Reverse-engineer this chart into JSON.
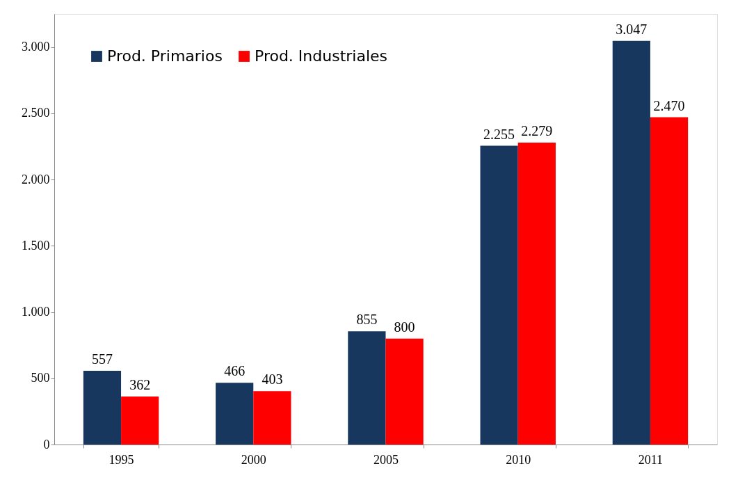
{
  "chart_data": {
    "type": "bar",
    "categories": [
      "1995",
      "2000",
      "2005",
      "2010",
      "2011"
    ],
    "series": [
      {
        "name": "Prod. Primarios",
        "color": "#17375e",
        "values": [
          557,
          466,
          855,
          2255,
          3047
        ],
        "value_labels": [
          "557",
          "466",
          "855",
          "2.255",
          "3.047"
        ]
      },
      {
        "name": "Prod. Industriales",
        "color": "#ff0000",
        "values": [
          362,
          403,
          800,
          2279,
          2470
        ],
        "value_labels": [
          "362",
          "403",
          "800",
          "2.279",
          "2.470"
        ]
      }
    ],
    "ylim": [
      0,
      3250
    ],
    "yticks": [
      0,
      500,
      {
        "value": 1000,
        "label": "1.000"
      },
      {
        "value": 1500,
        "label": "1.500"
      },
      {
        "value": 2000,
        "label": "2.000"
      },
      {
        "value": 2500,
        "label": "2.500"
      },
      {
        "value": 3000,
        "label": "3.000"
      }
    ],
    "grid": false,
    "legend": "top left"
  }
}
